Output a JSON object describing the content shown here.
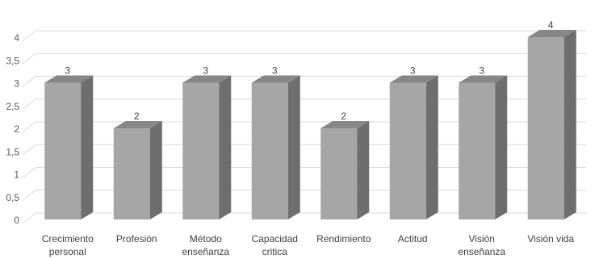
{
  "chart_data": {
    "type": "bar",
    "style": "3d-column",
    "title": "",
    "xlabel": "",
    "ylabel": "",
    "categories": [
      [
        "Crecimiento",
        "personal"
      ],
      [
        "Profesión"
      ],
      [
        "Método",
        "enseñanza"
      ],
      [
        "Capacidad",
        "critica"
      ],
      [
        "Rendimiento"
      ],
      [
        "Actitud"
      ],
      [
        "Visión",
        "enseñanza"
      ],
      [
        "Visión vida"
      ]
    ],
    "values": [
      3,
      2,
      3,
      3,
      2,
      3,
      3,
      4
    ],
    "data_labels": [
      "3",
      "2",
      "3",
      "3",
      "2",
      "3",
      "3",
      "4"
    ],
    "ylim": [
      0,
      4
    ],
    "yticks": [
      "0",
      "0,5",
      "1",
      "1,5",
      "2",
      "2,5",
      "3",
      "3,5",
      "4"
    ],
    "ytick_values": [
      0,
      0.5,
      1,
      1.5,
      2,
      2.5,
      3,
      3.5,
      4
    ],
    "grid": true,
    "legend": "none",
    "colors": {
      "bar_front": "#a6a6a6",
      "bar_side": "#6e6e6e",
      "bar_top": "#878787",
      "grid": "#d9d9d9",
      "text": "#404040"
    }
  }
}
